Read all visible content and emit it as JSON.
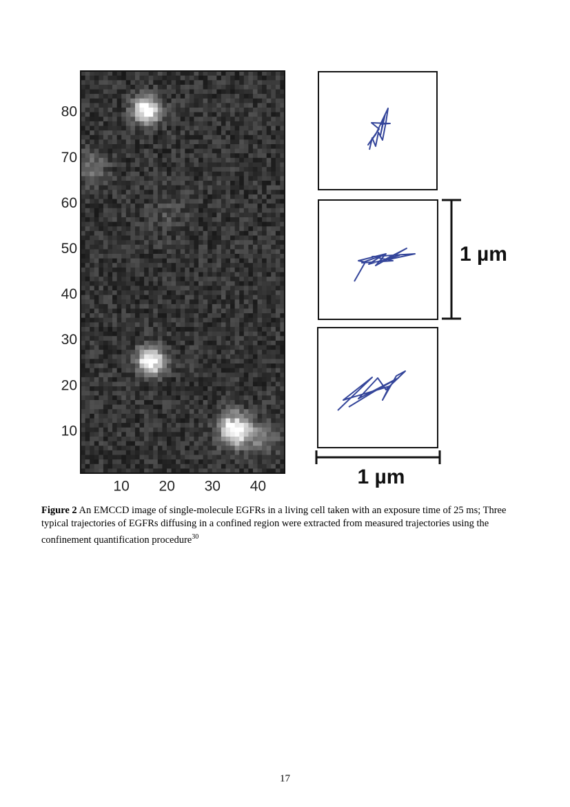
{
  "figure": {
    "y_ticks": [
      10,
      20,
      30,
      40,
      50,
      60,
      70,
      80
    ],
    "x_ticks": [
      10,
      20,
      30,
      40
    ],
    "scale_bar_vertical": "1 µm",
    "scale_bar_horizontal": "1 µm",
    "caption": {
      "label": "Figure 2",
      "text": "An EMCCD image of single-molecule EGFRs in a living cell taken with an exposure time of 25 ms; Three typical trajectories of EGFRs diffusing in a confined region were extracted from measured trajectories using the confinement quantification procedure",
      "reference": "30"
    }
  },
  "page_number": "17"
}
